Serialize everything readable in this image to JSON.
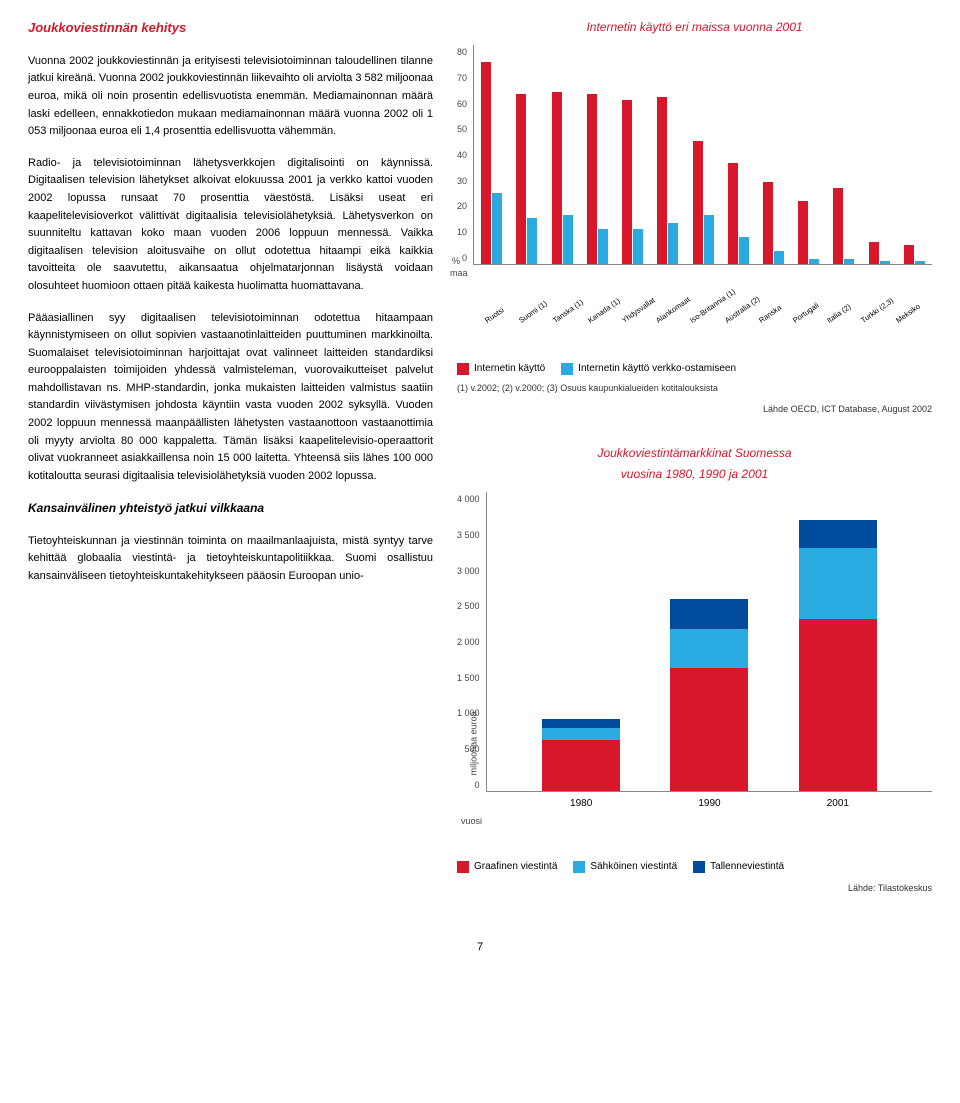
{
  "left": {
    "heading": "Joukkoviestinnän kehitys",
    "p1": "Vuonna 2002 joukkoviestinnän ja erityisesti televisiotoiminnan taloudellinen tilanne jatkui kireänä. Vuonna 2002 joukkoviestinnän liikevaihto oli arviolta 3 582 miljoonaa euroa, mikä oli noin prosentin edellisvuotista enemmän. Mediamainonnan määrä laski edelleen, ennakkotiedon mukaan mediamainonnan määrä vuonna 2002 oli 1 053 miljoonaa euroa eli 1,4 prosenttia edellisvuotta vähemmän.",
    "p2": "Radio- ja televisiotoiminnan lähetysverkkojen digitalisointi on käynnissä. Digitaalisen television lähetykset alkoivat elokuussa 2001 ja verkko kattoi vuoden 2002 lopussa runsaat 70 prosenttia väestöstä. Lisäksi useat eri kaapelitelevisioverkot välittivät digitaalisia televisiolähetyksiä. Lähetysverkon on suunniteltu kattavan koko maan vuoden 2006 loppuun mennessä. Vaikka digitaalisen television aloitusvaihe on ollut odotettua hitaampi eikä kaikkia tavoitteita ole saavutettu, aikansaatua ohjelmatarjonnan lisäystä voidaan olosuhteet huomioon ottaen pitää kaikesta huolimatta huomattavana.",
    "p3": "Pääasiallinen syy digitaalisen televisiotoiminnan odotettua hitaampaan käynnistymiseen on ollut sopivien vastaanotinlaitteiden puuttuminen markkinoilta. Suomalaiset televisiotoiminnan harjoittajat ovat valinneet laitteiden standardiksi eurooppalaisten toimijoiden yhdessä valmisteleman, vuorovaikutteiset palvelut mahdollistavan ns. MHP-standardin, jonka mukaisten laitteiden valmistus saatiin standardin viivästymisen johdosta käyntiin vasta vuoden 2002 syksyllä. Vuoden 2002 loppuun mennessä maanpäällisten lähetysten vastaanottoon vastaanottimia oli myyty arviolta 80 000 kappaletta. Tämän lisäksi kaapelitelevisio-operaattorit olivat vuokranneet asiakkaillensa noin 15 000 laitetta. Yhteensä siis lähes 100 000 kotitaloutta seurasi digitaalisia televisiolähetyksiä vuoden 2002 lopussa.",
    "sub_heading": "Kansainvälinen yhteistyö jatkui vilkkaana",
    "p4": "Tietoyhteiskunnan ja viestinnän toiminta on maailmanlaajuista, mistä syntyy tarve kehittää globaalia viestintä- ja tietoyhteiskuntapolitiikkaa. Suomi osallistuu kansainväliseen tietoyhteiskuntakehitykseen pääosin Euroopan unio-"
  },
  "chart1": {
    "title": "Internetin käyttö eri maissa vuonna 2001",
    "y_unit": "%",
    "x_unit": "maa",
    "ylim": [
      0,
      80
    ],
    "ytick_step": 10,
    "yticks": [
      "80",
      "70",
      "60",
      "50",
      "40",
      "30",
      "20",
      "10",
      "0"
    ],
    "countries": [
      "Ruotsi",
      "Suomi (1)",
      "Tanska (1)",
      "Kanada (1)",
      "Yhdysvallat",
      "Alankomaat",
      "Iso-Britannia (1)",
      "Australia (2)",
      "Ranska",
      "Portugali",
      "Italia (2)",
      "Turkki (2,3)",
      "Meksiko"
    ],
    "use": [
      74,
      62,
      63,
      62,
      60,
      61,
      45,
      37,
      30,
      23,
      28,
      8,
      7
    ],
    "purchase": [
      26,
      17,
      18,
      13,
      13,
      15,
      18,
      10,
      5,
      2,
      2,
      1,
      1
    ],
    "bar_color_primary": "#d9172a",
    "bar_color_secondary": "#29abe2",
    "legend_primary": "Internetin käyttö",
    "legend_secondary": "Internetin käyttö verkko-ostamiseen",
    "note": "(1) v.2002;  (2) v.2000;  (3) Osuus kaupunkialueiden kotitalouksista",
    "source": "Lähde OECD, ICT Database, August 2002"
  },
  "chart2": {
    "title1": "Joukkoviestintämarkkinat Suomessa",
    "title2": "vuosina 1980, 1990 ja 2001",
    "y_unit": "miljoonaa euroa",
    "x_unit": "vuosi",
    "ylim": [
      0,
      4000
    ],
    "ytick_step": 500,
    "yticks": [
      "4 000",
      "3 500",
      "3 000",
      "2 500",
      "2 000",
      "1 500",
      "1 000",
      "500",
      "0"
    ],
    "years": [
      "1980",
      "1990",
      "2001"
    ],
    "graafinen": [
      680,
      1650,
      2300
    ],
    "sahkoinen": [
      170,
      520,
      950
    ],
    "tallenne": [
      110,
      400,
      370
    ],
    "color_graafinen": "#d9172a",
    "color_sahkoinen": "#29abe2",
    "color_tallenne": "#004b9b",
    "legend_graafinen": "Graafinen viestintä",
    "legend_sahkoinen": "Sähköinen viestintä",
    "legend_tallenne": "Tallenneviestintä",
    "source": "Lähde: Tilastokeskus"
  },
  "page_number": "7"
}
